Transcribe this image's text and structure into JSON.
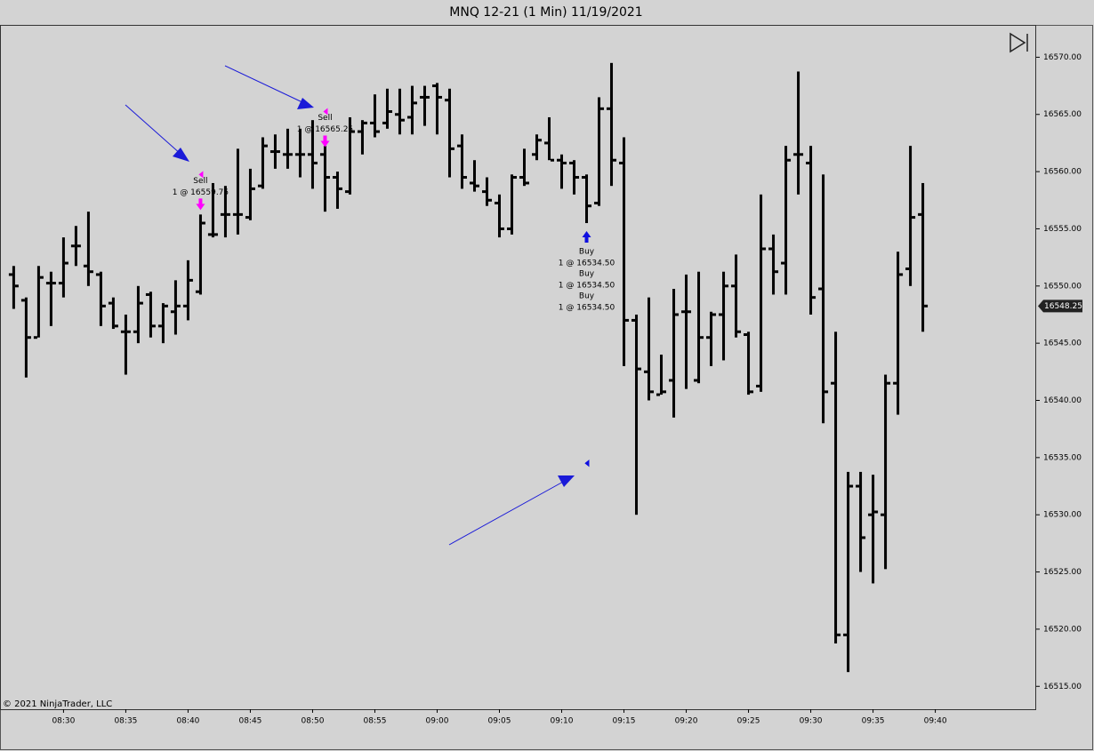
{
  "chart_data": {
    "type": "ohlc",
    "title": "MNQ 12-21 (1 Min)  11/19/2021",
    "copyright": "© 2021 NinjaTrader, LLC",
    "color": "#000000",
    "x": [
      506,
      507,
      508,
      509,
      510,
      511,
      512,
      513,
      514,
      515,
      516,
      517,
      518,
      519,
      520,
      521,
      522,
      523,
      524,
      525,
      526,
      527,
      528,
      529,
      530,
      531,
      532,
      533,
      534,
      535,
      536,
      537,
      538,
      539,
      540,
      541,
      542,
      543,
      544,
      545,
      546,
      547,
      548,
      549,
      550,
      551,
      552,
      553,
      554,
      555,
      556,
      557,
      558,
      559,
      560,
      561,
      562,
      563,
      564,
      565,
      566,
      567,
      568,
      569,
      570,
      571,
      572,
      573,
      574,
      575,
      576,
      577,
      578,
      579
    ],
    "open": [
      16551,
      16548.75,
      16545.5,
      16550.25,
      16550.25,
      16553.5,
      16551.75,
      16551,
      16548.5,
      16546,
      16546,
      16549.25,
      16546.5,
      16547.75,
      16548.25,
      16549.5,
      16554.5,
      16556.25,
      16556.25,
      16556,
      16558.75,
      16561.75,
      16561.5,
      16561.5,
      16561.5,
      16561.5,
      16559.5,
      16558.25,
      16563.5,
      16564.25,
      16564.25,
      16565,
      16564.75,
      16566.5,
      16567.5,
      16566.25,
      16562.25,
      16559,
      16558.25,
      16557.25,
      16555,
      16559.5,
      16561.5,
      16562.5,
      16561,
      16560.75,
      16559.5,
      16557.25,
      16565.5,
      16560.75,
      16547,
      16542.5,
      16540.5,
      16541.75,
      16547.75,
      16541.75,
      16545.5,
      16547.5,
      16550,
      16545.75,
      16541.25,
      16553.25,
      16552,
      16561.5,
      16560.75,
      16549.75,
      16541.5,
      16519.5,
      16532.5,
      16530,
      16530,
      16541.5,
      16551.5,
      16556.25
    ],
    "high": [
      16551.75,
      16549,
      16551.75,
      16551.25,
      16554.25,
      16555.25,
      16556.5,
      16551.25,
      16549,
      16547.5,
      16550,
      16549.5,
      16548.5,
      16550.5,
      16552.25,
      16556.25,
      16559,
      16558.75,
      16562,
      16560.25,
      16563,
      16563.25,
      16563.75,
      16563.75,
      16564.5,
      16562.25,
      16560,
      16564.75,
      16564.5,
      16566.75,
      16567.25,
      16567.25,
      16567.5,
      16567.5,
      16567.75,
      16567.25,
      16563.25,
      16561,
      16559.5,
      16558,
      16559.75,
      16562,
      16563.25,
      16564.75,
      16561.5,
      16561,
      16559.75,
      16566.5,
      16569.5,
      16563,
      16547.5,
      16549,
      16544,
      16549.75,
      16551,
      16551.25,
      16547.75,
      16551.25,
      16552.75,
      16546,
      16558,
      16554.5,
      16562.25,
      16568.75,
      16562.25,
      16559.75,
      16546,
      16533.75,
      16533.75,
      16533.5,
      16542.25,
      16553,
      16562.25,
      16559
    ],
    "low": [
      16548,
      16542,
      16545.5,
      16546.5,
      16549,
      16551.75,
      16550,
      16546.5,
      16546.25,
      16542.25,
      16545,
      16545.5,
      16545,
      16545.75,
      16547,
      16549.25,
      16554.25,
      16554.25,
      16554.5,
      16555.75,
      16558.5,
      16560.25,
      16560.25,
      16559.5,
      16558.5,
      16556.5,
      16556.75,
      16558,
      16561.5,
      16563,
      16563.75,
      16563.25,
      16563.25,
      16564,
      16563.25,
      16559.5,
      16558.5,
      16558.25,
      16557,
      16554.25,
      16554.5,
      16558.75,
      16561,
      16561,
      16558.5,
      16558,
      16555.5,
      16557,
      16558.75,
      16543,
      16530,
      16540,
      16540.5,
      16538.5,
      16541,
      16541.5,
      16543,
      16543.5,
      16545.5,
      16540.5,
      16540.75,
      16549.25,
      16549.25,
      16558,
      16547.5,
      16538,
      16518.75,
      16516.25,
      16525,
      16524,
      16525.25,
      16538.75,
      16550,
      16546
    ],
    "close": [
      16550,
      16545.5,
      16550.75,
      16550.25,
      16552,
      16553.5,
      16551.25,
      16548.25,
      16546.5,
      16546,
      16548.5,
      16546.5,
      16548.25,
      16548.25,
      16550.5,
      16555.5,
      16554.5,
      16556.25,
      16556.25,
      16558.5,
      16562.25,
      16561.75,
      16561.5,
      16561.5,
      16560.75,
      16559.5,
      16558.5,
      16563.5,
      16564.25,
      16563.5,
      16565.25,
      16564.5,
      16566,
      16566.5,
      16566.5,
      16562,
      16559.5,
      16558.75,
      16557.5,
      16555,
      16559.5,
      16559,
      16562.75,
      16561,
      16560.75,
      16559.5,
      16557,
      16565.5,
      16561,
      16547,
      16542.75,
      16540.75,
      16540.75,
      16547.5,
      16547.75,
      16545.5,
      16547.5,
      16550,
      16546,
      16540.75,
      16553.25,
      16551.25,
      16561,
      16561.5,
      16549,
      16540.75,
      16519.5,
      16532.5,
      16528,
      16530.25,
      16541.5,
      16551,
      16556,
      16548.25
    ],
    "last_price": 16548.25,
    "xlim": [
      504.9,
      588.1
    ],
    "xticks": [
      {
        "value": 510,
        "label": "08:30"
      },
      {
        "value": 515,
        "label": "08:35"
      },
      {
        "value": 520,
        "label": "08:40"
      },
      {
        "value": 525,
        "label": "08:45"
      },
      {
        "value": 530,
        "label": "08:50"
      },
      {
        "value": 535,
        "label": "08:55"
      },
      {
        "value": 540,
        "label": "09:00"
      },
      {
        "value": 545,
        "label": "09:05"
      },
      {
        "value": 550,
        "label": "09:10"
      },
      {
        "value": 555,
        "label": "09:15"
      },
      {
        "value": 560,
        "label": "09:20"
      },
      {
        "value": 565,
        "label": "09:25"
      },
      {
        "value": 570,
        "label": "09:30"
      },
      {
        "value": 575,
        "label": "09:35"
      },
      {
        "value": 580,
        "label": "09:40"
      }
    ],
    "ylim": [
      16513,
      16572.75
    ],
    "yticks": [
      {
        "value": 16515,
        "label": "16515.00"
      },
      {
        "value": 16520,
        "label": "16520.00"
      },
      {
        "value": 16525,
        "label": "16525.00"
      },
      {
        "value": 16530,
        "label": "16530.00"
      },
      {
        "value": 16535,
        "label": "16535.00"
      },
      {
        "value": 16540,
        "label": "16540.00"
      },
      {
        "value": 16545,
        "label": "16545.00"
      },
      {
        "value": 16550,
        "label": "16550.00"
      },
      {
        "value": 16555,
        "label": "16555.00"
      },
      {
        "value": 16560,
        "label": "16560.00"
      },
      {
        "value": 16565,
        "label": "16565.00"
      },
      {
        "value": 16570,
        "label": "16570.00"
      }
    ],
    "executions": [
      {
        "label": "Sell",
        "detail": "1 @ 16559.75",
        "x": 521,
        "price": 16559.75
      },
      {
        "label": "Sell",
        "detail": "1 @ 16565.25",
        "x": 531,
        "price": 16565.25
      },
      {
        "label": "Buy",
        "detail": "1 @ 16534.50",
        "x": 552,
        "price": 16534.5
      },
      {
        "label": "Buy",
        "detail": "1 @ 16534.50",
        "x": 552,
        "price": 16534.5
      },
      {
        "label": "Buy",
        "detail": "1 @ 16534.50",
        "x": 552,
        "price": 16534.5
      }
    ]
  }
}
